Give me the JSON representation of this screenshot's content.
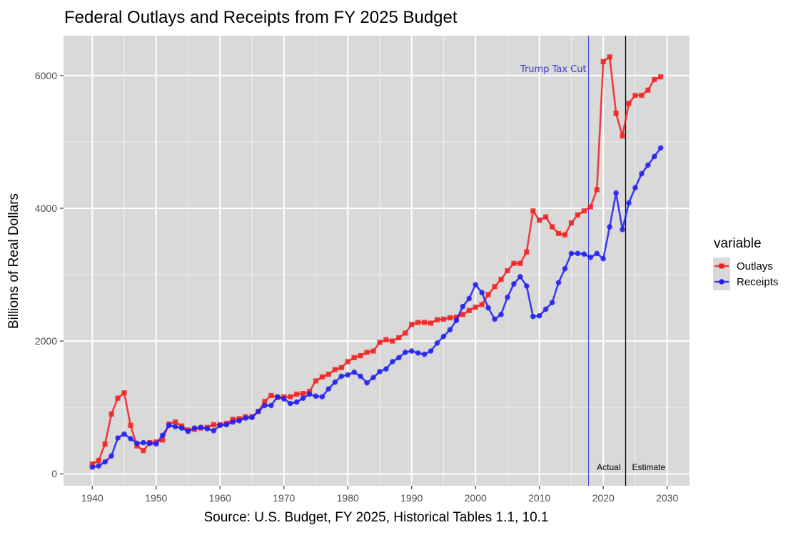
{
  "chart_data": {
    "type": "line",
    "title": "Federal Outlays and Receipts from FY 2025 Budget",
    "xlabel": "Source: U.S. Budget, FY 2025, Historical Tables 1.1, 10.1",
    "ylabel": "Billions of Real Dollars",
    "xlim": [
      1935.5,
      2033.5
    ],
    "ylim": [
      -180,
      6600
    ],
    "x_ticks": [
      1940,
      1950,
      1960,
      1970,
      1980,
      1990,
      2000,
      2010,
      2020,
      2030
    ],
    "y_ticks": [
      0,
      2000,
      4000,
      6000
    ],
    "x_tick_labels": [
      "1940",
      "1950",
      "1960",
      "1970",
      "1980",
      "1990",
      "2000",
      "2010",
      "2020",
      "2030"
    ],
    "y_tick_labels": [
      "0",
      "2000",
      "4000",
      "6000"
    ],
    "grid": true,
    "legend": {
      "title": "variable",
      "position": "right",
      "entries": [
        "Outlays",
        "Receipts"
      ]
    },
    "x": [
      1940,
      1941,
      1942,
      1943,
      1944,
      1945,
      1946,
      1947,
      1948,
      1949,
      1950,
      1951,
      1952,
      1953,
      1954,
      1955,
      1956,
      1957,
      1958,
      1959,
      1960,
      1961,
      1962,
      1963,
      1964,
      1965,
      1966,
      1967,
      1968,
      1969,
      1970,
      1971,
      1972,
      1973,
      1974,
      1975,
      1976,
      1977,
      1978,
      1979,
      1980,
      1981,
      1982,
      1983,
      1984,
      1985,
      1986,
      1987,
      1988,
      1989,
      1990,
      1991,
      1992,
      1993,
      1994,
      1995,
      1996,
      1997,
      1998,
      1999,
      2000,
      2001,
      2002,
      2003,
      2004,
      2005,
      2006,
      2007,
      2008,
      2009,
      2010,
      2011,
      2012,
      2013,
      2014,
      2015,
      2016,
      2017,
      2018,
      2019,
      2020,
      2021,
      2022,
      2023,
      2024,
      2025,
      2026,
      2027,
      2028,
      2029
    ],
    "series": [
      {
        "name": "Outlays",
        "color": "#f22020",
        "marker": "square",
        "values": [
          150,
          200,
          450,
          900,
          1140,
          1220,
          730,
          420,
          350,
          470,
          480,
          510,
          750,
          780,
          720,
          660,
          670,
          690,
          700,
          740,
          740,
          760,
          820,
          830,
          860,
          860,
          940,
          1090,
          1180,
          1150,
          1160,
          1160,
          1200,
          1210,
          1240,
          1400,
          1460,
          1500,
          1570,
          1600,
          1690,
          1750,
          1780,
          1830,
          1850,
          1980,
          2020,
          2000,
          2050,
          2120,
          2250,
          2280,
          2280,
          2270,
          2320,
          2330,
          2350,
          2360,
          2400,
          2460,
          2510,
          2550,
          2700,
          2820,
          2930,
          3060,
          3170,
          3170,
          3340,
          3960,
          3820,
          3870,
          3720,
          3620,
          3600,
          3780,
          3900,
          3960,
          4020,
          4280,
          6210,
          6280,
          5430,
          5090,
          5580,
          5700,
          5700,
          5780,
          5940,
          5980
        ]
      },
      {
        "name": "Receipts",
        "color": "#2020f2",
        "marker": "circle",
        "values": [
          100,
          120,
          180,
          270,
          540,
          600,
          530,
          460,
          470,
          460,
          450,
          580,
          730,
          710,
          690,
          640,
          690,
          700,
          680,
          650,
          730,
          740,
          780,
          800,
          840,
          850,
          940,
          1030,
          1030,
          1160,
          1130,
          1060,
          1080,
          1140,
          1200,
          1170,
          1160,
          1280,
          1380,
          1470,
          1490,
          1530,
          1470,
          1370,
          1450,
          1540,
          1580,
          1690,
          1750,
          1830,
          1850,
          1820,
          1800,
          1850,
          1970,
          2070,
          2170,
          2310,
          2520,
          2640,
          2850,
          2730,
          2500,
          2330,
          2400,
          2660,
          2860,
          2970,
          2830,
          2370,
          2380,
          2480,
          2580,
          2880,
          3090,
          3320,
          3320,
          3310,
          3260,
          3320,
          3240,
          3720,
          4230,
          3680,
          4080,
          4310,
          4520,
          4650,
          4780,
          4910
        ]
      }
    ],
    "vlines": [
      {
        "x": 2017.7,
        "color": "#3a3acf",
        "label": "Trump Tax Cut"
      },
      {
        "x": 2023.5,
        "color": "#000000",
        "labels": [
          "Actual",
          "Estimate"
        ]
      }
    ],
    "panel_background": "#d9d9d9",
    "grid_color": "#ffffff"
  }
}
